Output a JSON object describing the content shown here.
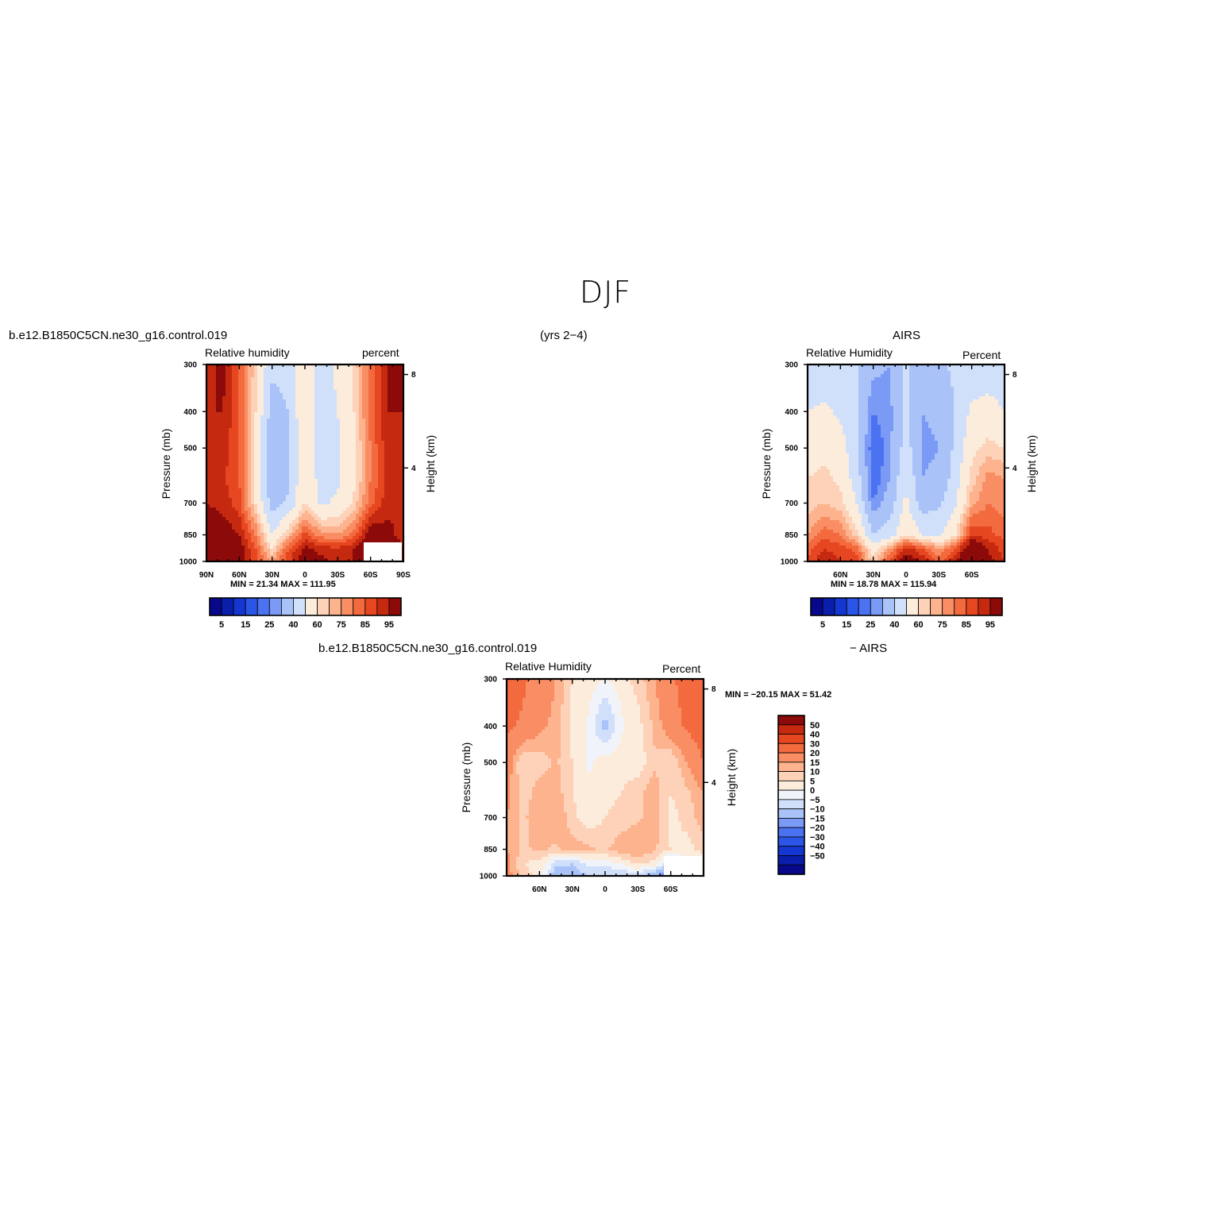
{
  "page": {
    "title": "DJF",
    "case_name": "b.e12.B1850C5CN.ne30_g16.control.019",
    "years": "(yrs 2−4)",
    "obs_name": "AIRS",
    "diff_label": "− AIRS"
  },
  "colors": {
    "level_fill": [
      "#08088c",
      "#0a1eac",
      "#1437d2",
      "#2b55e6",
      "#4b72f0",
      "#7b9af5",
      "#a9c2f8",
      "#d0e0fa",
      "#fbecdc",
      "#fdd2b8",
      "#fcb38e",
      "#f98e64",
      "#f26a3e",
      "#e64620",
      "#c52a10",
      "#8c0a0a"
    ],
    "diff_fill": [
      "#08088c",
      "#0a1eac",
      "#1437d2",
      "#2b55e6",
      "#4b72f0",
      "#7b9af5",
      "#a9c2f8",
      "#d0e0fa",
      "#f0f4fa",
      "#fbecdc",
      "#fdd2b8",
      "#fcb38e",
      "#f98e64",
      "#f26a3e",
      "#e64620",
      "#c52a10",
      "#8c0a0a"
    ]
  },
  "panels": {
    "model": {
      "variable": "Relative humidity",
      "units": "percent",
      "ylabel": "Pressure (mb)",
      "ylabel_right": "Height (km)",
      "stats": "MIN =   21.34   MAX = 111.95"
    },
    "obs": {
      "variable": "Relative Humidity",
      "units": "Percent",
      "ylabel": "Pressure (mb)",
      "ylabel_right": "Height (km)",
      "stats": "MIN =   18.78   MAX = 115.94"
    },
    "diff": {
      "variable": "Relative Humidity",
      "units": "Percent",
      "ylabel": "Pressure (mb)",
      "ylabel_right": "Height (km)",
      "stats": "MIN = −20.15   MAX =   51.42"
    }
  },
  "chart_data": [
    {
      "type": "heatmap",
      "name": "model",
      "title": "b.e12.B1850C5CN.ne30_g16.control.019",
      "subtitle_left": "Relative humidity",
      "subtitle_right": "percent",
      "ylabel": "Pressure (mb)",
      "ylabel_right": "Height (km)",
      "x_ticks": [
        "90N",
        "60N",
        "30N",
        "0",
        "30S",
        "60S",
        "90S"
      ],
      "x_tick_lat": [
        90,
        60,
        30,
        0,
        -30,
        -60,
        -90
      ],
      "xlim": [
        90,
        -90
      ],
      "y_ticks": [
        300,
        400,
        500,
        700,
        850,
        1000
      ],
      "ylim": [
        1000,
        300
      ],
      "yscale": "log",
      "y_right_ticks": [
        8,
        4
      ],
      "colorbar_labels": [
        "5",
        "15",
        "25",
        "40",
        "60",
        "75",
        "85",
        "95"
      ],
      "lat": [
        90,
        75,
        60,
        45,
        30,
        15,
        0,
        -15,
        -30,
        -45,
        -60,
        -75,
        -90
      ],
      "lev": [
        300,
        400,
        500,
        600,
        700,
        850,
        925,
        1000
      ],
      "values": [
        [
          88,
          92,
          80,
          62,
          42,
          45,
          58,
          45,
          52,
          62,
          78,
          90,
          92
        ],
        [
          90,
          90,
          80,
          60,
          35,
          40,
          60,
          45,
          50,
          60,
          78,
          90,
          90
        ],
        [
          90,
          88,
          80,
          58,
          32,
          38,
          58,
          45,
          48,
          58,
          75,
          88,
          90
        ],
        [
          88,
          86,
          80,
          58,
          30,
          38,
          60,
          45,
          48,
          58,
          75,
          86,
          90
        ],
        [
          90,
          88,
          82,
          60,
          35,
          42,
          60,
          48,
          52,
          62,
          78,
          88,
          90
        ],
        [
          96,
          94,
          90,
          75,
          50,
          65,
          82,
          72,
          70,
          78,
          96,
          92,
          88
        ],
        [
          106,
          100,
          94,
          80,
          60,
          80,
          92,
          88,
          86,
          90,
          98,
          96,
          90
        ],
        [
          111,
          104,
          96,
          82,
          70,
          84,
          94,
          92,
          88,
          90,
          96,
          95,
          92
        ]
      ],
      "stats": {
        "min": 21.34,
        "max": 111.95
      }
    },
    {
      "type": "heatmap",
      "name": "obs",
      "title": "AIRS",
      "subtitle_left": "Relative Humidity",
      "subtitle_right": "Percent",
      "ylabel": "Pressure (mb)",
      "ylabel_right": "Height (km)",
      "x_ticks": [
        "60N",
        "30N",
        "0",
        "30S",
        "60S"
      ],
      "x_tick_lat": [
        60,
        30,
        0,
        -30,
        -60
      ],
      "xlim": [
        90,
        -90
      ],
      "y_ticks": [
        300,
        400,
        500,
        700,
        850,
        1000
      ],
      "ylim": [
        1000,
        300
      ],
      "yscale": "log",
      "y_right_ticks": [
        8,
        4
      ],
      "colorbar_labels": [
        "5",
        "15",
        "25",
        "40",
        "60",
        "75",
        "85",
        "95"
      ],
      "lat": [
        90,
        75,
        60,
        45,
        30,
        15,
        0,
        -15,
        -30,
        -45,
        -60,
        -75,
        -90
      ],
      "lev": [
        300,
        400,
        500,
        600,
        700,
        850,
        925,
        1000
      ],
      "values": [
        [
          42,
          42,
          42,
          40,
          32,
          30,
          42,
          32,
          38,
          42,
          42,
          42,
          42
        ],
        [
          50,
          52,
          48,
          40,
          25,
          28,
          42,
          30,
          32,
          40,
          52,
          55,
          50
        ],
        [
          55,
          58,
          55,
          42,
          20,
          28,
          45,
          28,
          30,
          42,
          58,
          62,
          60
        ],
        [
          60,
          62,
          58,
          45,
          20,
          30,
          50,
          30,
          32,
          45,
          62,
          72,
          70
        ],
        [
          62,
          65,
          62,
          50,
          25,
          35,
          52,
          35,
          38,
          48,
          68,
          75,
          72
        ],
        [
          70,
          78,
          75,
          62,
          40,
          45,
          60,
          50,
          48,
          60,
          85,
          82,
          78
        ],
        [
          78,
          85,
          82,
          78,
          55,
          70,
          88,
          80,
          70,
          80,
          100,
          90,
          82
        ],
        [
          80,
          90,
          85,
          82,
          62,
          82,
          95,
          90,
          78,
          88,
          110,
          92,
          85
        ]
      ],
      "stats": {
        "min": 18.78,
        "max": 115.94
      }
    },
    {
      "type": "heatmap",
      "name": "diff",
      "title": "b.e12.B1850C5CN.ne30_g16.control.019  − AIRS",
      "subtitle_left": "Relative Humidity",
      "subtitle_right": "Percent",
      "ylabel": "Pressure (mb)",
      "ylabel_right": "Height (km)",
      "x_ticks": [
        "60N",
        "30N",
        "0",
        "30S",
        "60S"
      ],
      "x_tick_lat": [
        60,
        30,
        0,
        -30,
        -60
      ],
      "xlim": [
        90,
        -90
      ],
      "y_ticks": [
        300,
        400,
        500,
        700,
        850,
        1000
      ],
      "ylim": [
        1000,
        300
      ],
      "yscale": "log",
      "y_right_ticks": [
        8,
        4
      ],
      "colorbar_labels": [
        "50",
        "40",
        "30",
        "20",
        "15",
        "10",
        "5",
        "0",
        "−5",
        "−10",
        "−15",
        "−20",
        "−30",
        "−40",
        "−50"
      ],
      "lat": [
        90,
        75,
        60,
        45,
        30,
        15,
        0,
        -15,
        -30,
        -45,
        -60,
        -75,
        -90
      ],
      "lev": [
        300,
        400,
        500,
        600,
        700,
        850,
        925,
        1000
      ],
      "values": [
        [
          40,
          32,
          25,
          20,
          10,
          8,
          5,
          8,
          12,
          20,
          28,
          35,
          40
        ],
        [
          32,
          28,
          22,
          18,
          8,
          4,
          -8,
          4,
          8,
          16,
          25,
          32,
          36
        ],
        [
          25,
          10,
          12,
          16,
          10,
          4,
          8,
          8,
          6,
          14,
          10,
          20,
          30
        ],
        [
          22,
          12,
          18,
          18,
          10,
          6,
          8,
          10,
          14,
          18,
          10,
          14,
          20
        ],
        [
          20,
          14,
          18,
          20,
          12,
          6,
          10,
          12,
          14,
          18,
          8,
          12,
          18
        ],
        [
          20,
          14,
          16,
          14,
          18,
          16,
          14,
          18,
          20,
          16,
          10,
          8,
          12
        ],
        [
          22,
          10,
          8,
          -2,
          -5,
          2,
          2,
          6,
          12,
          8,
          -8,
          4,
          6
        ],
        [
          24,
          12,
          8,
          -10,
          -8,
          -5,
          -5,
          -6,
          -4,
          -10,
          -15,
          4,
          6
        ]
      ],
      "stats": {
        "min": -20.15,
        "max": 51.42
      }
    }
  ]
}
